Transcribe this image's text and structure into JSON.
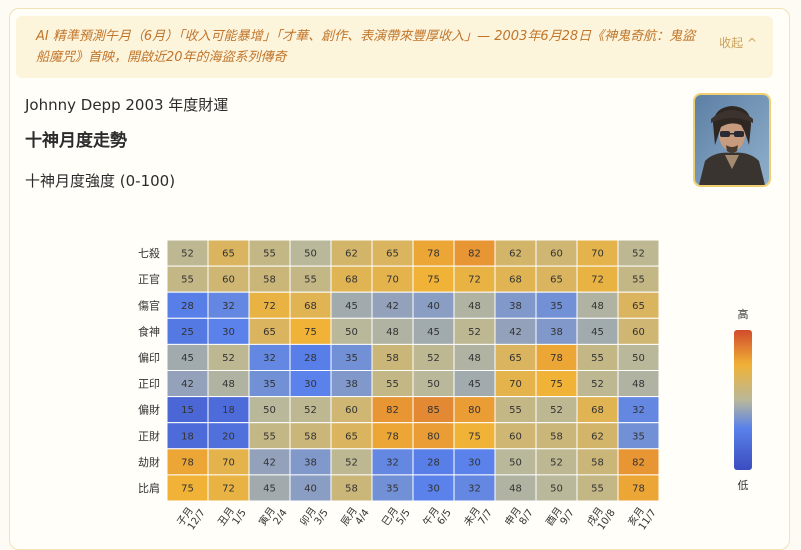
{
  "banner": {
    "text": "AI 精準預測午月（6月）「收入可能暴增」「才華、創作、表演帶來豐厚收入」— 2003年6月28日《神鬼奇航：鬼盜船魔咒》首映，開啟近20年的海盜系列傳奇",
    "collapse_label": "收起 ^"
  },
  "header": {
    "title": "Johnny Depp 2003 年度財運",
    "subtitle": "十神月度走勢"
  },
  "avatar": {
    "icon": "portrait-photo"
  },
  "chart_data": {
    "type": "heatmap",
    "title": "十神月度強度 (0-100)",
    "rows": [
      "七殺",
      "正官",
      "傷官",
      "食神",
      "偏印",
      "正印",
      "偏財",
      "正財",
      "劫財",
      "比肩"
    ],
    "columns": [
      "子月 12/7",
      "丑月 1/5",
      "寅月 2/4",
      "卯月 3/5",
      "辰月 4/4",
      "巳月 5/5",
      "午月 6/5",
      "未月 7/7",
      "申月 8/7",
      "酉月 9/7",
      "戌月 10/8",
      "亥月 11/7"
    ],
    "values": [
      [
        52,
        65,
        55,
        50,
        62,
        65,
        78,
        82,
        62,
        60,
        70,
        52
      ],
      [
        55,
        60,
        58,
        55,
        68,
        70,
        75,
        72,
        68,
        65,
        72,
        55
      ],
      [
        28,
        32,
        72,
        68,
        45,
        42,
        40,
        48,
        38,
        35,
        48,
        65
      ],
      [
        25,
        30,
        65,
        75,
        50,
        48,
        45,
        52,
        42,
        38,
        45,
        60
      ],
      [
        45,
        52,
        32,
        28,
        35,
        58,
        52,
        48,
        65,
        78,
        55,
        50
      ],
      [
        42,
        48,
        35,
        30,
        38,
        55,
        50,
        45,
        70,
        75,
        52,
        48
      ],
      [
        15,
        18,
        50,
        52,
        60,
        82,
        85,
        80,
        55,
        52,
        68,
        32
      ],
      [
        18,
        20,
        55,
        58,
        65,
        78,
        80,
        75,
        60,
        58,
        62,
        35
      ],
      [
        78,
        70,
        42,
        38,
        52,
        32,
        28,
        30,
        50,
        52,
        58,
        82
      ],
      [
        75,
        72,
        45,
        40,
        58,
        35,
        30,
        32,
        48,
        50,
        55,
        78
      ]
    ],
    "range": [
      0,
      100
    ],
    "colorbar": {
      "high_label": "高",
      "low_label": "低"
    }
  }
}
